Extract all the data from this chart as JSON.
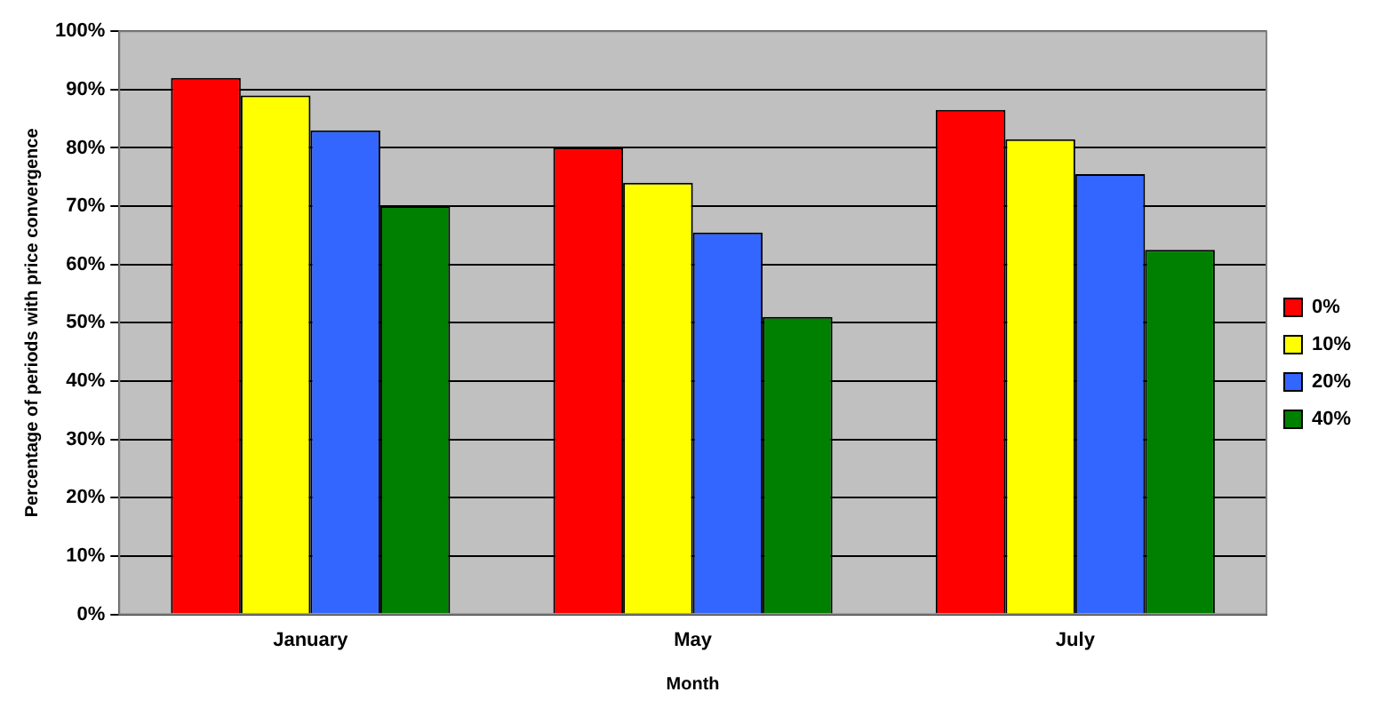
{
  "chart_data": {
    "type": "bar",
    "xlabel": "Month",
    "ylabel": "Percentage of periods with price convergence",
    "categories": [
      "January",
      "May",
      "July"
    ],
    "series": [
      {
        "name": "0%",
        "color": "#ff0000",
        "values": [
          92,
          80,
          86.5
        ]
      },
      {
        "name": "10%",
        "color": "#ffff00",
        "values": [
          89,
          74,
          81.5
        ]
      },
      {
        "name": "20%",
        "color": "#3366ff",
        "values": [
          83,
          65.5,
          75.5
        ]
      },
      {
        "name": "40%",
        "color": "#008000",
        "values": [
          70,
          51,
          62.5
        ]
      }
    ],
    "ylim": [
      0,
      100
    ],
    "yticks": [
      {
        "value": 0,
        "label": "0%"
      },
      {
        "value": 10,
        "label": "10%"
      },
      {
        "value": 20,
        "label": "20%"
      },
      {
        "value": 30,
        "label": "30%"
      },
      {
        "value": 40,
        "label": "40%"
      },
      {
        "value": 50,
        "label": "50%"
      },
      {
        "value": 60,
        "label": "60%"
      },
      {
        "value": 70,
        "label": "70%"
      },
      {
        "value": 80,
        "label": "80%"
      },
      {
        "value": 90,
        "label": "90%"
      },
      {
        "value": 100,
        "label": "100%"
      }
    ],
    "grid": "y",
    "legend": "right"
  }
}
